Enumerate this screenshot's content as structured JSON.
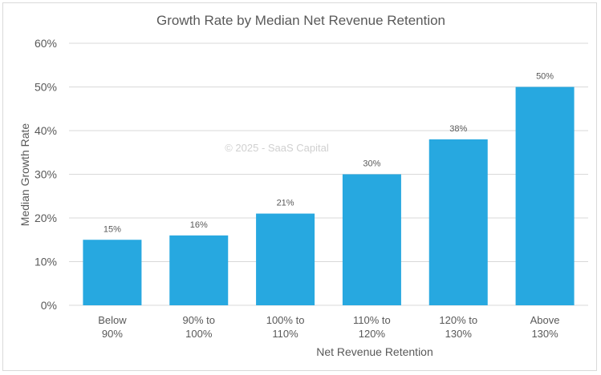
{
  "chart_data": {
    "type": "bar",
    "title": "Growth Rate by Median Net Revenue Retention",
    "xlabel": "Net Revenue Retention",
    "ylabel": "Median Growth Rate",
    "watermark": "© 2025 - SaaS Capital",
    "categories": [
      [
        "Below",
        "90%"
      ],
      [
        "90% to",
        "100%"
      ],
      [
        "100% to",
        "110%"
      ],
      [
        "110% to",
        "120%"
      ],
      [
        "120% to",
        "130%"
      ],
      [
        "Above",
        "130%"
      ]
    ],
    "values": [
      15,
      16,
      21,
      30,
      38,
      50
    ],
    "data_labels": [
      "15%",
      "16%",
      "21%",
      "30%",
      "38%",
      "50%"
    ],
    "ylim": [
      0,
      60
    ],
    "yticks": [
      0,
      10,
      20,
      30,
      40,
      50,
      60
    ],
    "ytick_labels": [
      "0%",
      "10%",
      "20%",
      "30%",
      "40%",
      "50%",
      "60%"
    ],
    "grid": true,
    "legend": "none",
    "colors": {
      "bar": "#27A8E0",
      "grid": "#d9d9d9",
      "text": "#595959"
    }
  }
}
